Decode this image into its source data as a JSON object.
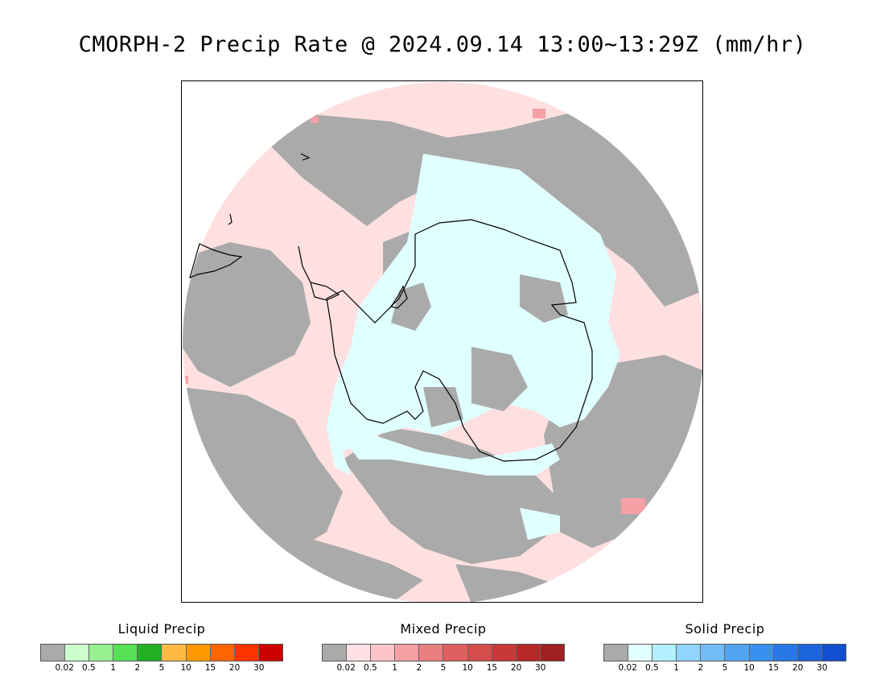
{
  "title": "CMORPH-2 Precip Rate @ 2024.09.14 13:00~13:29Z (mm/hr)",
  "map": {
    "projection": "south-polar-stereographic",
    "colors": {
      "no_precip": "#aaaaaa",
      "mixed_light": "#ffe0e0",
      "solid_light": "#e0ffff",
      "coastline": "#000000"
    }
  },
  "legends": [
    {
      "id": "liquid",
      "title": "Liquid Precip",
      "colors": [
        "#aaaaaa",
        "#ccffcc",
        "#99f090",
        "#55e055",
        "#22b022",
        "#ffbb44",
        "#ff9900",
        "#ff6600",
        "#ff3300",
        "#cc0000"
      ],
      "ticks": [
        "0.02",
        "0.5",
        "1",
        "2",
        "5",
        "10",
        "15",
        "20",
        "30"
      ]
    },
    {
      "id": "mixed",
      "title": "Mixed Precip",
      "colors": [
        "#aaaaaa",
        "#ffe0e4",
        "#ffc4c8",
        "#f4a0a4",
        "#e88080",
        "#e06060",
        "#d44c4c",
        "#c83838",
        "#b42828",
        "#a02020"
      ],
      "ticks": [
        "0.02",
        "0.5",
        "1",
        "2",
        "5",
        "10",
        "15",
        "20",
        "30"
      ]
    },
    {
      "id": "solid",
      "title": "Solid Precip",
      "colors": [
        "#aaaaaa",
        "#e0ffff",
        "#b4f0ff",
        "#90d4ff",
        "#74bcf8",
        "#50a4f0",
        "#3890f0",
        "#2878e8",
        "#1c64dc",
        "#1050d0"
      ],
      "ticks": [
        "0.02",
        "0.5",
        "1",
        "2",
        "5",
        "10",
        "15",
        "20",
        "30"
      ]
    }
  ]
}
